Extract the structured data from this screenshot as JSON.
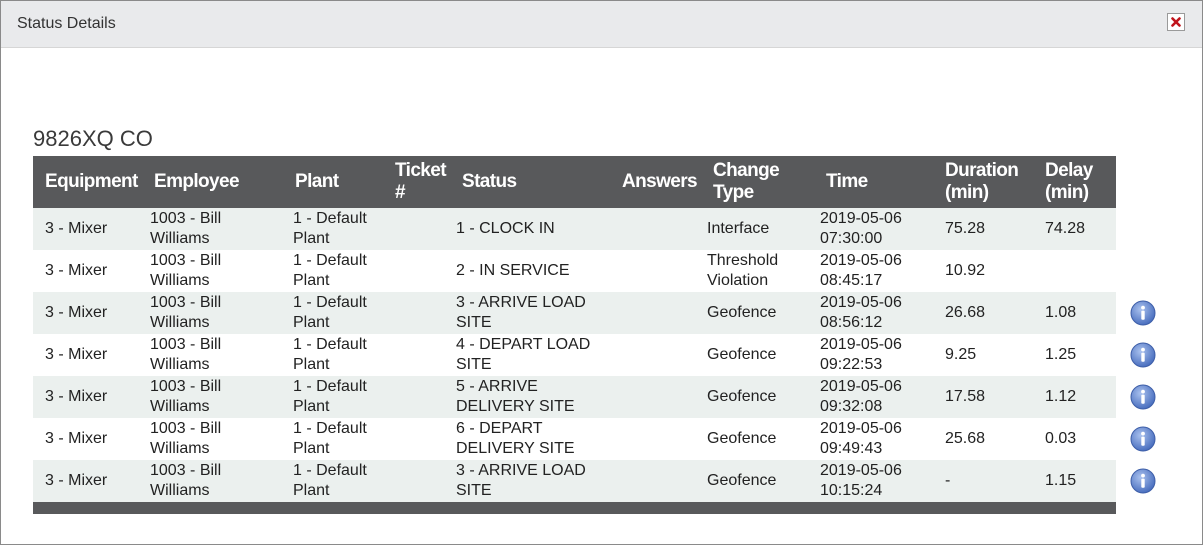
{
  "dialog": {
    "title": "Status Details",
    "close_icon": "close-icon"
  },
  "subtitle": "9826XQ CO",
  "columns": [
    "Equipment",
    "Employee",
    "Plant",
    "Ticket #",
    "Status",
    "Answers",
    "Change Type",
    "Time",
    "Duration (min)",
    "Delay (min)"
  ],
  "rows": [
    {
      "equipment": "3 - Mixer",
      "employee": "1003 - Bill Williams",
      "plant": "1 - Default Plant",
      "ticket": "",
      "status": "1 - CLOCK IN",
      "answers": "",
      "change_type": "Interface",
      "time": "2019-05-06 07:30:00",
      "duration": "75.28",
      "delay": "74.28",
      "info": false
    },
    {
      "equipment": "3 - Mixer",
      "employee": "1003 - Bill Williams",
      "plant": "1 - Default Plant",
      "ticket": "",
      "status": "2 - IN SERVICE",
      "answers": "",
      "change_type": "Threshold Violation",
      "time": "2019-05-06 08:45:17",
      "duration": "10.92",
      "delay": "",
      "info": false
    },
    {
      "equipment": "3 - Mixer",
      "employee": "1003 - Bill Williams",
      "plant": "1 - Default Plant",
      "ticket": "",
      "status": "3 - ARRIVE LOAD SITE",
      "answers": "",
      "change_type": "Geofence",
      "time": "2019-05-06 08:56:12",
      "duration": "26.68",
      "delay": "1.08",
      "info": true
    },
    {
      "equipment": "3 - Mixer",
      "employee": "1003 - Bill Williams",
      "plant": "1 - Default Plant",
      "ticket": "",
      "status": "4 - DEPART LOAD SITE",
      "answers": "",
      "change_type": "Geofence",
      "time": "2019-05-06 09:22:53",
      "duration": "9.25",
      "delay": "1.25",
      "info": true
    },
    {
      "equipment": "3 - Mixer",
      "employee": "1003 - Bill Williams",
      "plant": "1 - Default Plant",
      "ticket": "",
      "status": "5 - ARRIVE DELIVERY SITE",
      "answers": "",
      "change_type": "Geofence",
      "time": "2019-05-06 09:32:08",
      "duration": "17.58",
      "delay": "1.12",
      "info": true
    },
    {
      "equipment": "3 - Mixer",
      "employee": "1003 - Bill Williams",
      "plant": "1 - Default Plant",
      "ticket": "",
      "status": "6 - DEPART DELIVERY SITE",
      "answers": "",
      "change_type": "Geofence",
      "time": "2019-05-06 09:49:43",
      "duration": "25.68",
      "delay": "0.03",
      "info": true
    },
    {
      "equipment": "3 - Mixer",
      "employee": "1003 - Bill Williams",
      "plant": "1 - Default Plant",
      "ticket": "",
      "status": "3 - ARRIVE LOAD SITE",
      "answers": "",
      "change_type": "Geofence",
      "time": "2019-05-06 10:15:24",
      "duration": "-",
      "delay": "1.15",
      "info": true
    }
  ],
  "icons": {
    "info_icon": "info-icon"
  },
  "colors": {
    "header_bg": "#58595b",
    "row_alt_bg": "#ebf0ee",
    "titlebar_bg": "#e9eaec",
    "close_x": "#c0141c",
    "info_blue": "#5b7fc7"
  }
}
